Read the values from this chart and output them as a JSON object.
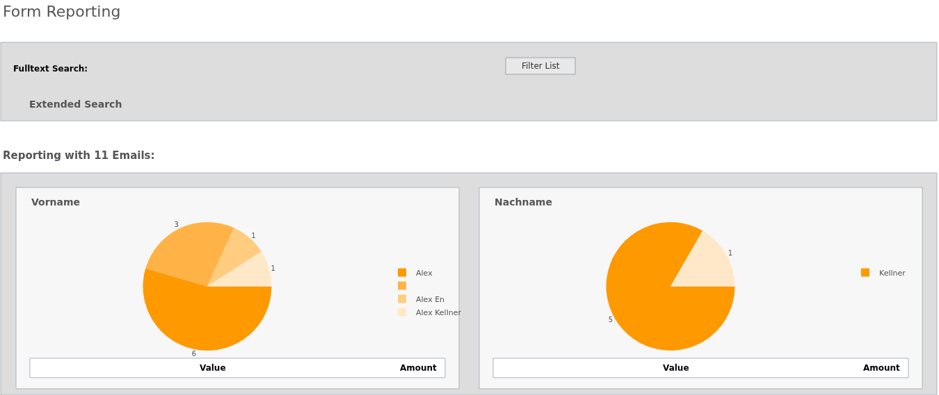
{
  "chart_data": [
    {
      "type": "pie",
      "title": "Vorname",
      "categories": [
        "Alex",
        null,
        "Alex En",
        "Alex Kellner"
      ],
      "values": [
        6,
        3,
        1,
        1
      ],
      "colors": [
        "#ff9900",
        "#ffb347",
        "#ffcc80",
        "#ffe8c8"
      ],
      "data_labels": true,
      "legend": "right",
      "annotations": [
        "Form Reporting",
        "Fulltext Search:",
        "Filter List",
        "Extended Search",
        "Reporting with 11 Emails:",
        "Value",
        "Amount"
      ]
    },
    {
      "type": "pie",
      "title": "Nachname",
      "categories": [
        "Kellner",
        null
      ],
      "values": [
        5,
        1
      ],
      "colors": [
        "#ff9900",
        "#ffe8c8"
      ],
      "data_labels": true,
      "legend": "right",
      "annotations": [
        "Value",
        "Amount"
      ]
    }
  ]
}
